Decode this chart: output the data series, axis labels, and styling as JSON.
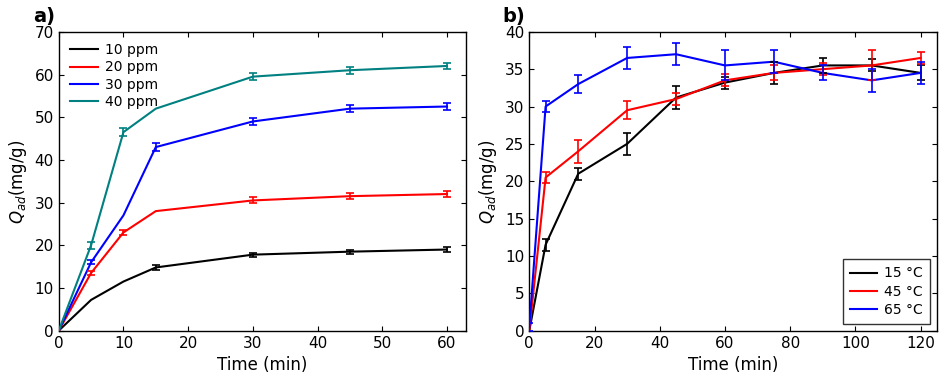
{
  "panel_a": {
    "title": "a)",
    "xlabel": "Time (min)",
    "ylabel": "$Q_{ad}$(mg/g)",
    "xlim": [
      0,
      63
    ],
    "ylim": [
      0,
      70
    ],
    "xticks": [
      0,
      10,
      20,
      30,
      40,
      50,
      60
    ],
    "yticks": [
      0,
      10,
      20,
      30,
      40,
      50,
      60,
      70
    ],
    "series": [
      {
        "label": "10 ppm",
        "color": "#000000",
        "x": [
          0,
          5,
          10,
          15,
          30,
          45,
          60
        ],
        "y": [
          0,
          7.2,
          11.5,
          14.8,
          17.8,
          18.5,
          19.0
        ],
        "yerr": [
          0,
          0,
          0,
          0.5,
          0.5,
          0.5,
          0.5
        ]
      },
      {
        "label": "20 ppm",
        "color": "#ff0000",
        "x": [
          0,
          5,
          10,
          15,
          30,
          45,
          60
        ],
        "y": [
          0,
          13.5,
          23.0,
          28.0,
          30.5,
          31.5,
          32.0
        ],
        "yerr": [
          0,
          0.5,
          0.5,
          0,
          0.7,
          0.7,
          0.7
        ]
      },
      {
        "label": "30 ppm",
        "color": "#0000ff",
        "x": [
          0,
          5,
          10,
          15,
          30,
          45,
          60
        ],
        "y": [
          0,
          16.0,
          27.0,
          43.0,
          49.0,
          52.0,
          52.5
        ],
        "yerr": [
          0,
          0.5,
          0,
          1.0,
          0.8,
          0.8,
          0.8
        ]
      },
      {
        "label": "40 ppm",
        "color": "#008080",
        "x": [
          0,
          5,
          10,
          15,
          30,
          45,
          60
        ],
        "y": [
          0,
          20.0,
          46.5,
          52.0,
          59.5,
          61.0,
          62.0
        ],
        "yerr": [
          0,
          0.8,
          1.0,
          0,
          0.8,
          0.8,
          0.8
        ]
      }
    ]
  },
  "panel_b": {
    "title": "b)",
    "xlabel": "Time (min)",
    "ylabel": "$Q_{ad}$(mg/g)",
    "xlim": [
      0,
      125
    ],
    "ylim": [
      0,
      40
    ],
    "xticks": [
      0,
      20,
      40,
      60,
      80,
      100,
      120
    ],
    "yticks": [
      0,
      5,
      10,
      15,
      20,
      25,
      30,
      35,
      40
    ],
    "series": [
      {
        "label": "15 °C",
        "color": "#000000",
        "x": [
          0,
          5,
          15,
          30,
          45,
          60,
          75,
          90,
          105,
          120
        ],
        "y": [
          0,
          11.5,
          21.0,
          25.0,
          31.2,
          33.2,
          34.5,
          35.5,
          35.5,
          34.5
        ],
        "yerr": [
          0,
          0.8,
          0.8,
          1.5,
          1.5,
          0.8,
          1.5,
          1.0,
          0.8,
          1.0
        ]
      },
      {
        "label": "45 °C",
        "color": "#ff0000",
        "x": [
          0,
          5,
          15,
          30,
          45,
          60,
          75,
          90,
          105,
          120
        ],
        "y": [
          0,
          20.5,
          24.0,
          29.5,
          31.0,
          33.5,
          34.5,
          35.0,
          35.5,
          36.5
        ],
        "yerr": [
          0,
          0.8,
          1.5,
          1.2,
          0.8,
          0.8,
          1.0,
          0.8,
          2.0,
          0.8
        ]
      },
      {
        "label": "65 °C",
        "color": "#0000ff",
        "x": [
          0,
          5,
          15,
          30,
          45,
          60,
          75,
          90,
          105,
          120
        ],
        "y": [
          0.5,
          30.0,
          33.0,
          36.5,
          37.0,
          35.5,
          36.0,
          34.5,
          33.5,
          34.5
        ],
        "yerr": [
          0.5,
          0.8,
          1.2,
          1.5,
          1.5,
          2.0,
          1.5,
          1.0,
          1.5,
          1.5
        ]
      }
    ],
    "legend_loc": "lower right"
  }
}
